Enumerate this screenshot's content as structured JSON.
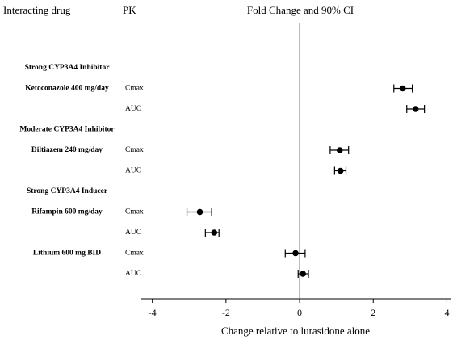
{
  "chart_data": {
    "type": "forest",
    "column_headers": [
      "Interacting drug",
      "PK"
    ],
    "title": "Fold Change and 90% CI",
    "xlabel": "Change relative to lurasidone alone",
    "xlim": [
      -4.3,
      4.1
    ],
    "xticks": [
      -4,
      -2,
      0,
      2,
      4
    ],
    "color": "#000000",
    "groups": [
      {
        "name": "Strong CYP3A4 Inhibitor",
        "drugs": [
          {
            "name": "Ketoconazole 400 mg/day",
            "measures": [
              {
                "pk": "Cmax",
                "value": 2.8,
                "ci": [
                  2.56,
                  3.06
                ]
              },
              {
                "pk": "AUC",
                "value": 3.15,
                "ci": [
                  2.91,
                  3.39
                ]
              }
            ]
          }
        ]
      },
      {
        "name": "Moderate CYP3A4 Inhibitor",
        "drugs": [
          {
            "name": "Diltiazem 240 mg/day",
            "measures": [
              {
                "pk": "Cmax",
                "value": 1.09,
                "ci": [
                  0.83,
                  1.33
                ]
              },
              {
                "pk": "AUC",
                "value": 1.11,
                "ci": [
                  0.95,
                  1.26
                ]
              }
            ]
          }
        ]
      },
      {
        "name": "Strong CYP3A4 Inducer",
        "drugs": [
          {
            "name": "Rifampin 600 mg/day",
            "measures": [
              {
                "pk": "Cmax",
                "value": -2.71,
                "ci": [
                  -3.06,
                  -2.39
                ]
              },
              {
                "pk": "AUC",
                "value": -2.32,
                "ci": [
                  -2.56,
                  -2.19
                ]
              }
            ]
          }
        ]
      },
      {
        "name": null,
        "drugs": [
          {
            "name": "Lithium 600 mg BID",
            "measures": [
              {
                "pk": "Cmax",
                "value": -0.11,
                "ci": [
                  -0.39,
                  0.15
                ]
              },
              {
                "pk": "AUC",
                "value": 0.09,
                "ci": [
                  -0.04,
                  0.24
                ]
              }
            ]
          }
        ]
      }
    ]
  }
}
